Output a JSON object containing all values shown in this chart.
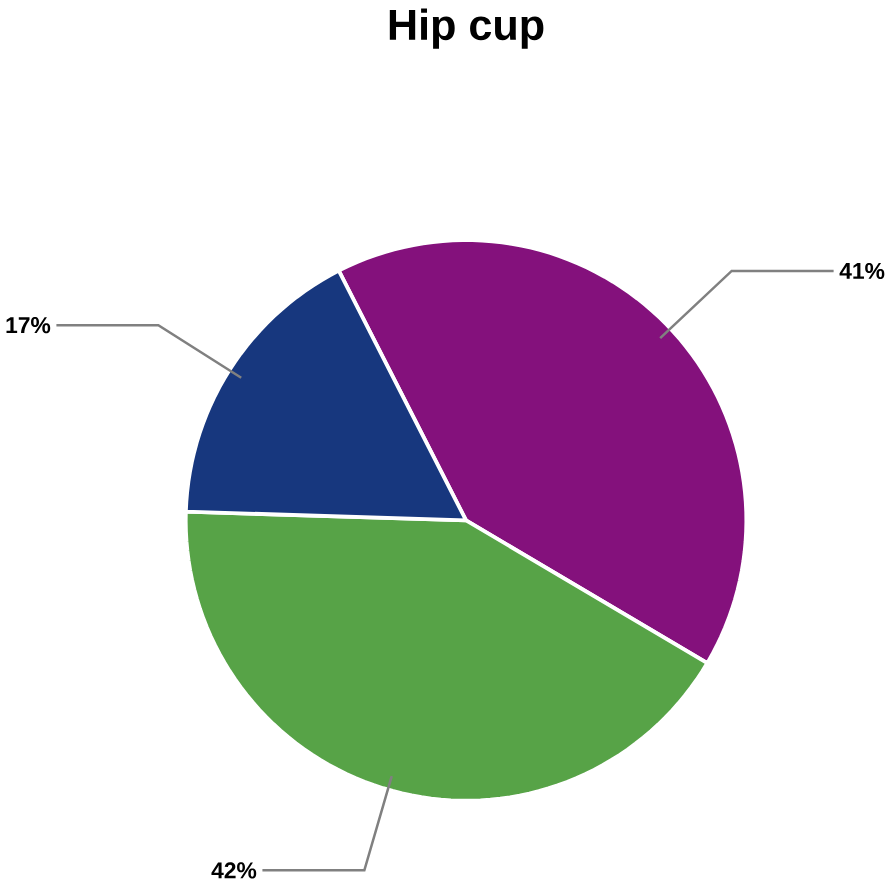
{
  "chart_data": {
    "type": "pie",
    "title": "Hip cup",
    "categories": [
      null,
      null,
      null
    ],
    "values": [
      41,
      42,
      17
    ],
    "colors": [
      "#84117c",
      "#57a347",
      "#17377e"
    ],
    "value_labels": [
      "41%",
      "42%",
      "17%"
    ]
  }
}
